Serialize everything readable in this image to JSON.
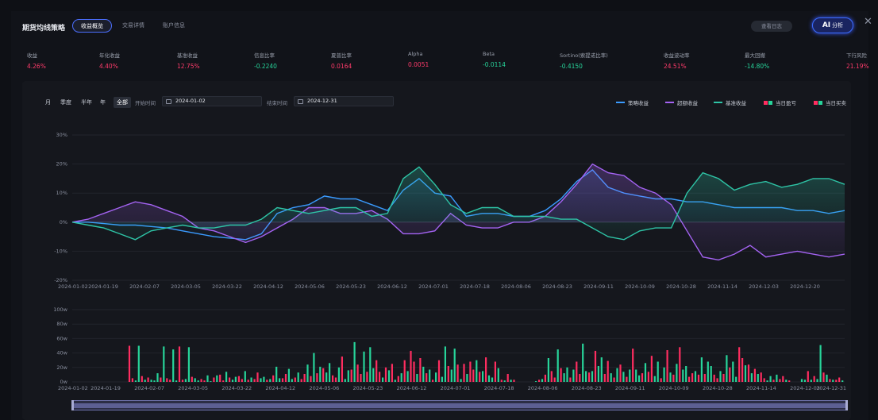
{
  "header": {
    "title": "期货均线策略",
    "tabs": [
      {
        "label": "收益概览",
        "active": true
      },
      {
        "label": "交易详情",
        "active": false
      },
      {
        "label": "账户信息",
        "active": false
      }
    ],
    "log_button": "查看日志",
    "ai_button_prefix": "AI",
    "ai_button_label": "分析",
    "close_icon": "close-icon"
  },
  "metrics": [
    {
      "label": "收益",
      "value": "4.26%",
      "tone": "pos"
    },
    {
      "label": "年化收益",
      "value": "4.40%",
      "tone": "pos"
    },
    {
      "label": "基准收益",
      "value": "12.75%",
      "tone": "pos"
    },
    {
      "label": "信息比率",
      "value": "-0.2240",
      "tone": "neg"
    },
    {
      "label": "夏普比率",
      "value": "0.0164",
      "tone": "pos"
    },
    {
      "label": "Alpha",
      "value": "0.0051",
      "tone": "pos"
    },
    {
      "label": "Beta",
      "value": "-0.0114",
      "tone": "neg"
    },
    {
      "label": "Sortino(索提诺比率)",
      "value": "-0.4150",
      "tone": "neg"
    },
    {
      "label": "收益波动率",
      "value": "24.51%",
      "tone": "pos"
    },
    {
      "label": "最大回撤",
      "value": "-14.80%",
      "tone": "neg"
    },
    {
      "label": "下行风险",
      "value": "21.19%",
      "tone": "pos"
    }
  ],
  "toolbar": {
    "periods": [
      {
        "label": "月",
        "active": false
      },
      {
        "label": "季度",
        "active": false
      },
      {
        "label": "半年",
        "active": false
      },
      {
        "label": "年",
        "active": false
      },
      {
        "label": "全部",
        "active": true
      }
    ],
    "start_label": "开始时间",
    "start_value": "2024-01-02",
    "end_label": "结束时间",
    "end_value": "2024-12-31"
  },
  "legend": [
    {
      "label": "策略收益",
      "color": "#3a9bff",
      "kind": "line"
    },
    {
      "label": "超额收益",
      "color": "#a463f2",
      "kind": "line"
    },
    {
      "label": "基准收益",
      "color": "#2ec4a6",
      "kind": "line"
    },
    {
      "label": "当日盈亏",
      "colors": [
        "#ff2d60",
        "#27d49a"
      ],
      "kind": "bar"
    },
    {
      "label": "当日买卖",
      "colors": [
        "#ff2d60",
        "#27d49a"
      ],
      "kind": "bar"
    }
  ],
  "chart_data": [
    {
      "type": "line",
      "x_tick_labels": [
        "2024-01-02",
        "2024-01-19",
        "2024-02-07",
        "2024-03-05",
        "2024-03-22",
        "2024-04-12",
        "2024-05-06",
        "2024-05-23",
        "2024-06-12",
        "2024-07-01",
        "2024-07-18",
        "2024-08-06",
        "2024-08-23",
        "2024-09-11",
        "2024-10-09",
        "2024-10-28",
        "2024-11-14",
        "2024-12-03",
        "2024-12-20"
      ],
      "y_tick_labels": [
        "30%",
        "20%",
        "10%",
        "0%",
        "-10%",
        "-20%"
      ],
      "ylim": [
        -20,
        30
      ],
      "y_unit": "%",
      "series": [
        {
          "name": "策略收益",
          "color": "#3a9bff",
          "values": [
            0,
            0,
            -0.5,
            -1,
            -1,
            -1.5,
            -2,
            -3,
            -4,
            -5,
            -5.5,
            -6,
            -4,
            3,
            5,
            6,
            9,
            8,
            8,
            6,
            4,
            11,
            15,
            10,
            9,
            2,
            3,
            3,
            2,
            2,
            4,
            8,
            14,
            18,
            12,
            10,
            9,
            8,
            8,
            7,
            7,
            6,
            5,
            5,
            5,
            5,
            4,
            4,
            3,
            4
          ]
        },
        {
          "name": "超额收益",
          "color": "#a463f2",
          "values": [
            0,
            1,
            3,
            5,
            7,
            6,
            4,
            2,
            -2,
            -3,
            -5,
            -7,
            -5,
            -2,
            1,
            5,
            5,
            3,
            3,
            4,
            1,
            -4,
            -4,
            -3,
            3,
            -1,
            -2,
            -2,
            0,
            0,
            2,
            7,
            13,
            20,
            17,
            16,
            12,
            10,
            6,
            -3,
            -12,
            -13,
            -11,
            -8,
            -12,
            -11,
            -10,
            -11,
            -12,
            -11
          ]
        },
        {
          "name": "基准收益",
          "color": "#2ec4a6",
          "values": [
            0,
            -1,
            -2,
            -4,
            -6,
            -3,
            -2,
            -1,
            -2,
            -2,
            -1,
            -1,
            1,
            5,
            4,
            3,
            4,
            5,
            5,
            2,
            3,
            15,
            19,
            13,
            6,
            3,
            5,
            5,
            2,
            2,
            2,
            1,
            1,
            -2,
            -5,
            -6,
            -3,
            -2,
            -2,
            10,
            17,
            15,
            11,
            13,
            14,
            12,
            13,
            15,
            15,
            13
          ]
        }
      ]
    },
    {
      "type": "bar",
      "x_tick_labels": [
        "2024-01-02",
        "2024-01-19",
        "2024-02-07",
        "2024-03-05",
        "2024-03-22",
        "2024-04-12",
        "2024-05-06",
        "2024-05-23",
        "2024-06-12",
        "2024-07-01",
        "2024-07-18",
        "2024-08-06",
        "2024-08-23",
        "2024-09-11",
        "2024-10-09",
        "2024-10-28",
        "2024-11-14",
        "2024-12-03",
        "2024-12-31"
      ],
      "y_tick_labels": [
        "100w",
        "80w",
        "60w",
        "40w",
        "20w",
        "0w"
      ],
      "ylim": [
        0,
        100
      ],
      "y_unit": "w",
      "series": [
        {
          "name": "当日盈亏",
          "color_pos": "#ff2d60",
          "color_neg": "#27d49a",
          "values": [
            0,
            0,
            0,
            0,
            0,
            0,
            0,
            0,
            0,
            0,
            0,
            0,
            0,
            0,
            0,
            0,
            0,
            0,
            50,
            5,
            2,
            50,
            8,
            3,
            6,
            3,
            2,
            12,
            6,
            49,
            5,
            3,
            45,
            2,
            49,
            3,
            4,
            48,
            7,
            5,
            2,
            4,
            2,
            9,
            1,
            6,
            9,
            10,
            2,
            14,
            6,
            3,
            7,
            8,
            4,
            15,
            3,
            6,
            4,
            13,
            5,
            7,
            3,
            4,
            9,
            21,
            5,
            5,
            11,
            18,
            4,
            6,
            13,
            4,
            11,
            24,
            8,
            40,
            12,
            21,
            19,
            13,
            26,
            9,
            6,
            20,
            35,
            4,
            16,
            17,
            55,
            24,
            11,
            42,
            14,
            48,
            19,
            30,
            14,
            6,
            20,
            16,
            25,
            3,
            8,
            12,
            30,
            15,
            43,
            28,
            11,
            33,
            21,
            12,
            17,
            3,
            13,
            30,
            7,
            49,
            22,
            17,
            46,
            24,
            4,
            25,
            11,
            28,
            17,
            30,
            14,
            15,
            34,
            9,
            6,
            28,
            19,
            3,
            2,
            11,
            3,
            3,
            0,
            0,
            0,
            0,
            0,
            0,
            1,
            3,
            4,
            10,
            33,
            15,
            6,
            45,
            19,
            12,
            20,
            6,
            17,
            28,
            11,
            53,
            15,
            13,
            15,
            43,
            22,
            34,
            11,
            29,
            12,
            6,
            19,
            24,
            14,
            7,
            17,
            46,
            17,
            9,
            12,
            26,
            14,
            36,
            8,
            28,
            5,
            20,
            44,
            13,
            10,
            25,
            48,
            17,
            22,
            7,
            12,
            15,
            10,
            34,
            11,
            28,
            22,
            10,
            5,
            15,
            11,
            37,
            20,
            28,
            7,
            48,
            33,
            23,
            24,
            12,
            18,
            11,
            13,
            5,
            2,
            8,
            3,
            10,
            4,
            8,
            3,
            2,
            0,
            0,
            0,
            4,
            3,
            15,
            3,
            8,
            4,
            51,
            13,
            10,
            4,
            3,
            3,
            6,
            2
          ]
        },
        {
          "name": "当日买卖",
          "color_pos": "#ff2d60",
          "color_neg": "#27d49a",
          "values": [
            0,
            0,
            0,
            0,
            0,
            0,
            0,
            0,
            0,
            0,
            0,
            0,
            0,
            0,
            0,
            0,
            0,
            0,
            1,
            1,
            0,
            0,
            1,
            0,
            1,
            0,
            0,
            0,
            1,
            0,
            1,
            1,
            0,
            0,
            1,
            1,
            0,
            0,
            1,
            0,
            0,
            1,
            1,
            0,
            0,
            1,
            0,
            1,
            1,
            0,
            1,
            0,
            0,
            1,
            1,
            0,
            1,
            0,
            1,
            1,
            0,
            0,
            1,
            0,
            1,
            0,
            0,
            1,
            1,
            0,
            0,
            1,
            0,
            1,
            1,
            0,
            1,
            0,
            1,
            0,
            1,
            0,
            0,
            1,
            1,
            0,
            1,
            0,
            0,
            1,
            0,
            1,
            1,
            0,
            1,
            0,
            0,
            1,
            1,
            0,
            1,
            0,
            1,
            0,
            1,
            0,
            1,
            0,
            1,
            1,
            0,
            1,
            0,
            1,
            0,
            1,
            0,
            1,
            0,
            0,
            1,
            0,
            0,
            1,
            0,
            1,
            0,
            1,
            1,
            0,
            1,
            0,
            1,
            0,
            0,
            1,
            0,
            1,
            0,
            1,
            0,
            1,
            0,
            0,
            0,
            0,
            0,
            0,
            0,
            1,
            0,
            1,
            0,
            1,
            1,
            0,
            1,
            0,
            0,
            1,
            0,
            1,
            1,
            0,
            0,
            1,
            0,
            1,
            0,
            0,
            1,
            1,
            0,
            1,
            0,
            1,
            0,
            1,
            0,
            1,
            0,
            0,
            1,
            0,
            1,
            1,
            0,
            0,
            1,
            0,
            1,
            0,
            1,
            0,
            1,
            0,
            0,
            1,
            1,
            0,
            1,
            0,
            1,
            0,
            0,
            1,
            1,
            0,
            1,
            0,
            1,
            0,
            0,
            1,
            1,
            0,
            1,
            0,
            1,
            0,
            1,
            1,
            0,
            0,
            1,
            0,
            1,
            1,
            0,
            1,
            0,
            0,
            0,
            0,
            0,
            1,
            0,
            1,
            0,
            0,
            1,
            0,
            1,
            0,
            1,
            1,
            0,
            1,
            0
          ]
        }
      ]
    }
  ]
}
